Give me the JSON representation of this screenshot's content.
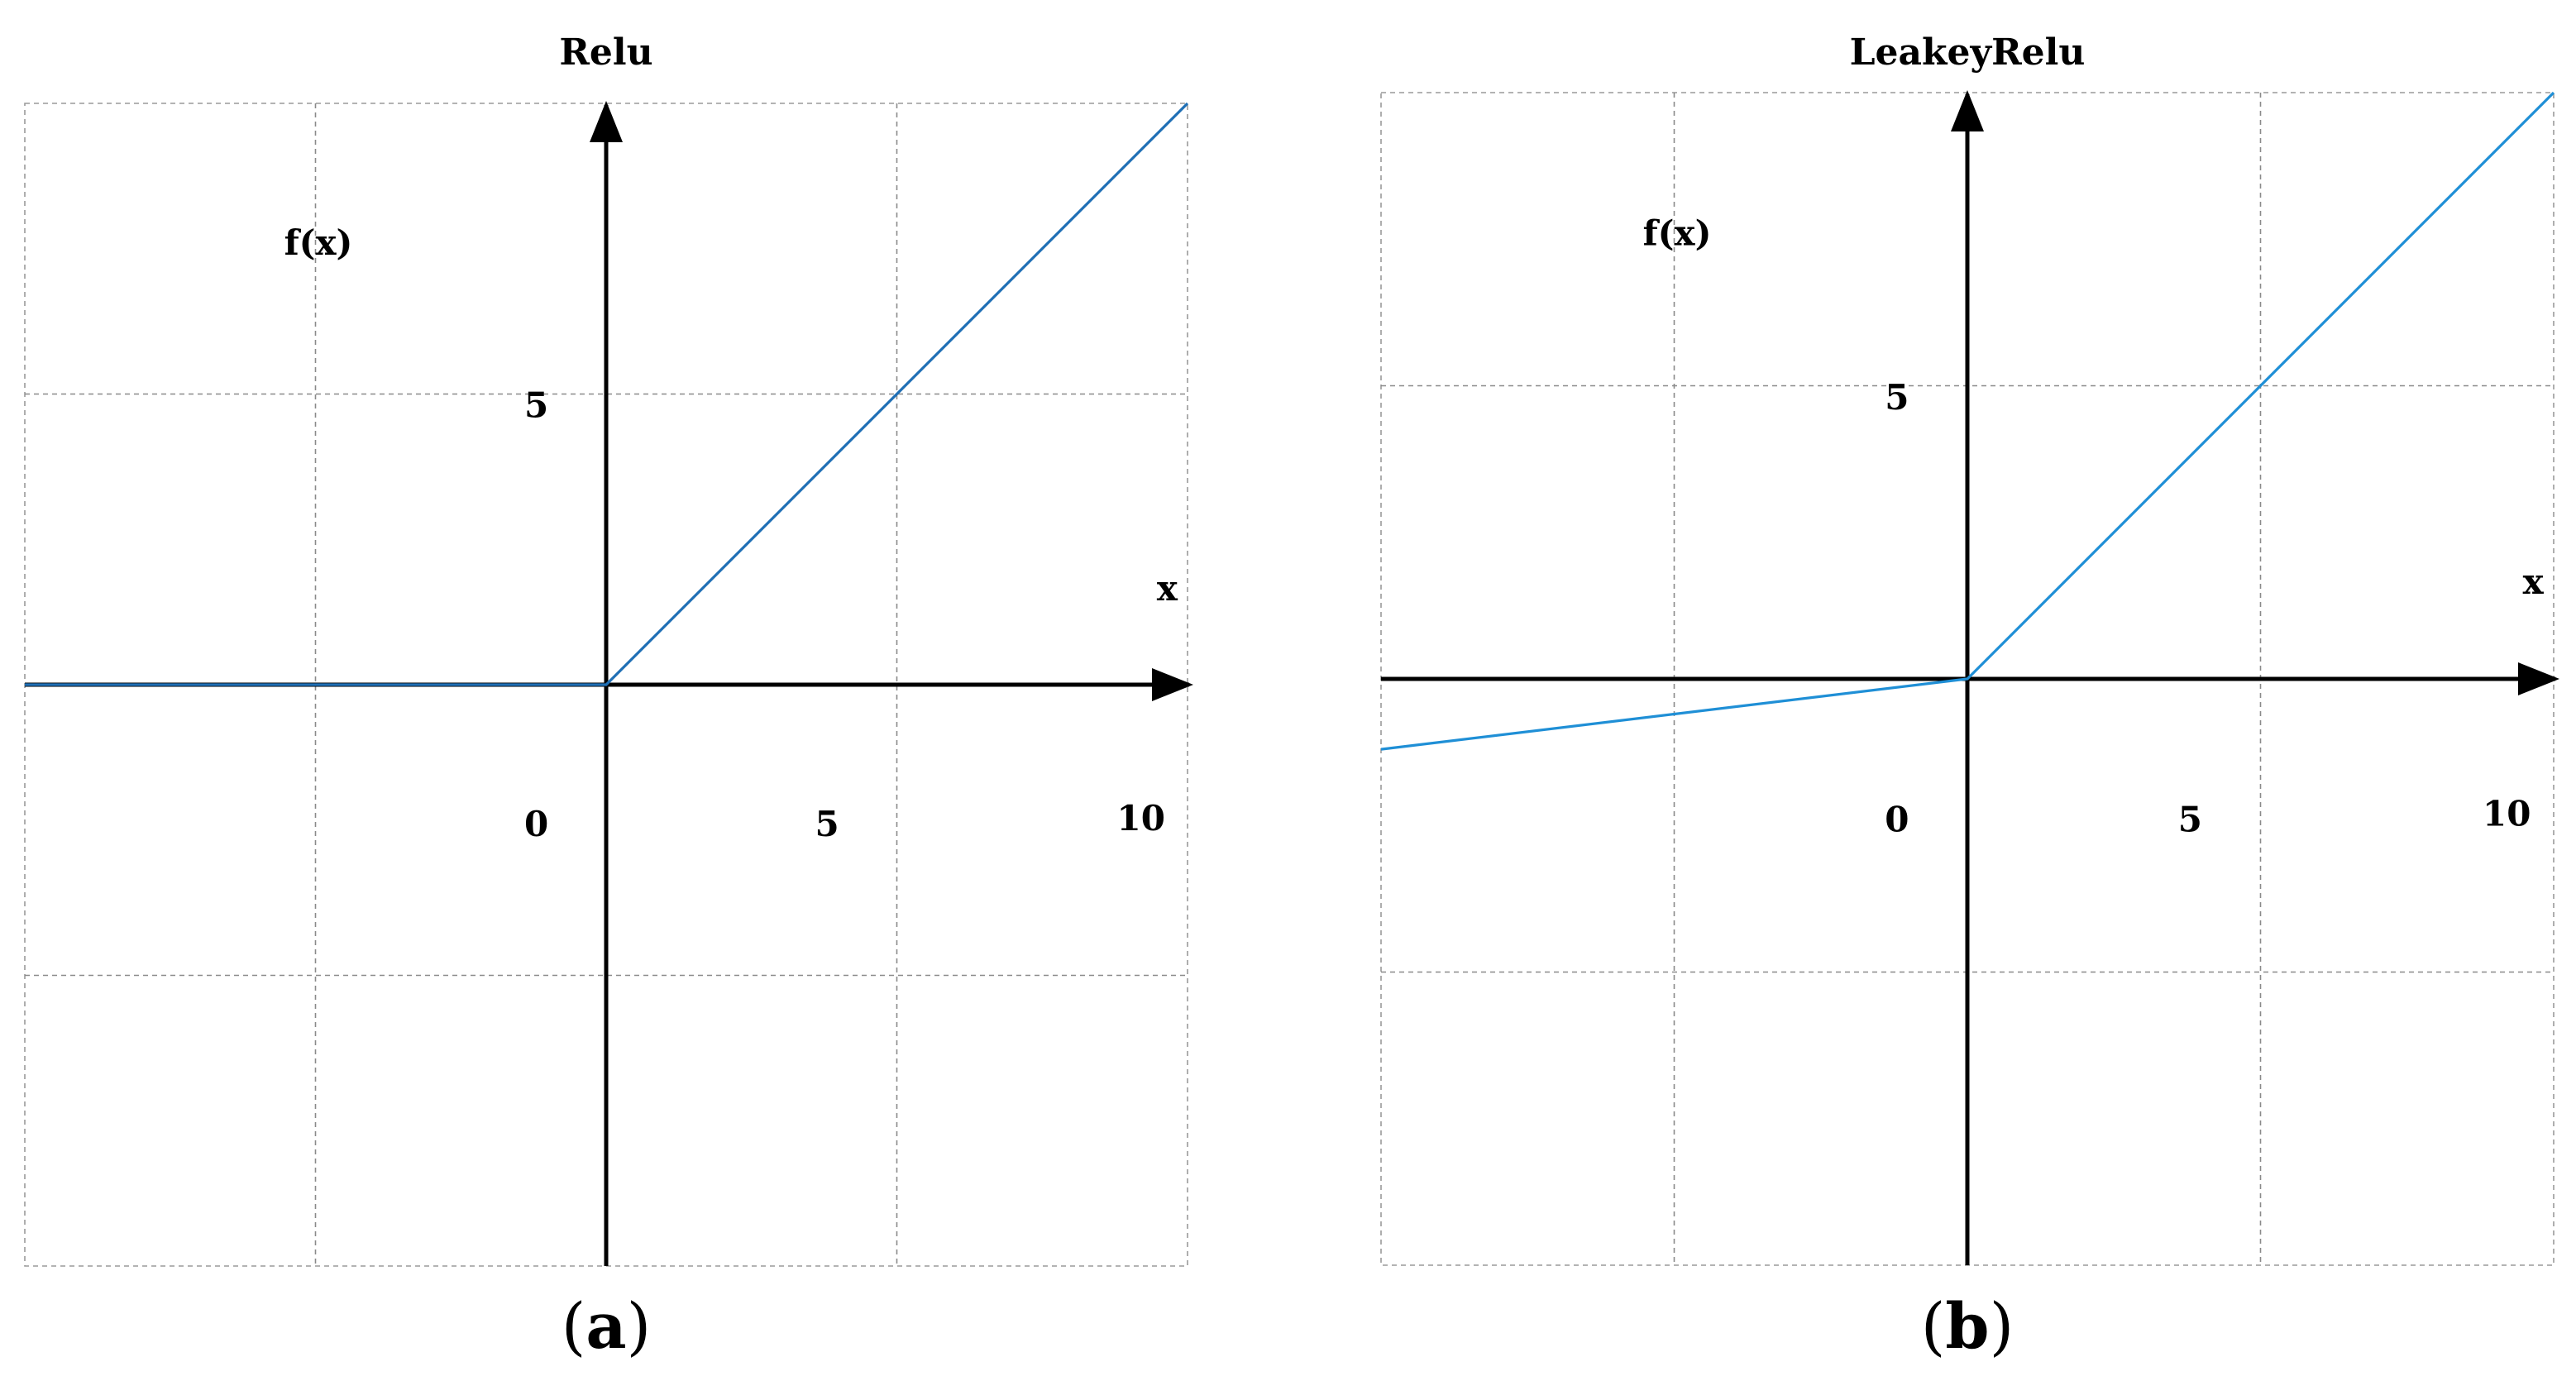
{
  "chart_data": [
    {
      "type": "line",
      "title": "Relu",
      "caption": "a",
      "xlabel": "x",
      "ylabel": "f(x)",
      "xlim": [
        -10,
        10
      ],
      "ylim": [
        -10,
        10
      ],
      "grid": true,
      "x_ticks": [
        "0",
        "5",
        "10"
      ],
      "y_ticks": [
        "5"
      ],
      "series": [
        {
          "x": [
            -10,
            0,
            10
          ],
          "y": [
            0,
            0,
            10
          ],
          "color": "#1f6fb5"
        }
      ]
    },
    {
      "type": "line",
      "title": "LeakeyRelu",
      "caption": "b",
      "xlabel": "x",
      "ylabel": "f(x)",
      "xlim": [
        -10,
        10
      ],
      "ylim": [
        -10,
        10
      ],
      "grid": true,
      "x_ticks": [
        "0",
        "5",
        "10"
      ],
      "y_ticks": [
        "5"
      ],
      "series": [
        {
          "x": [
            -10,
            0,
            10
          ],
          "y": [
            -1.2,
            0,
            10
          ],
          "color": "#1f8fd6"
        }
      ]
    }
  ]
}
